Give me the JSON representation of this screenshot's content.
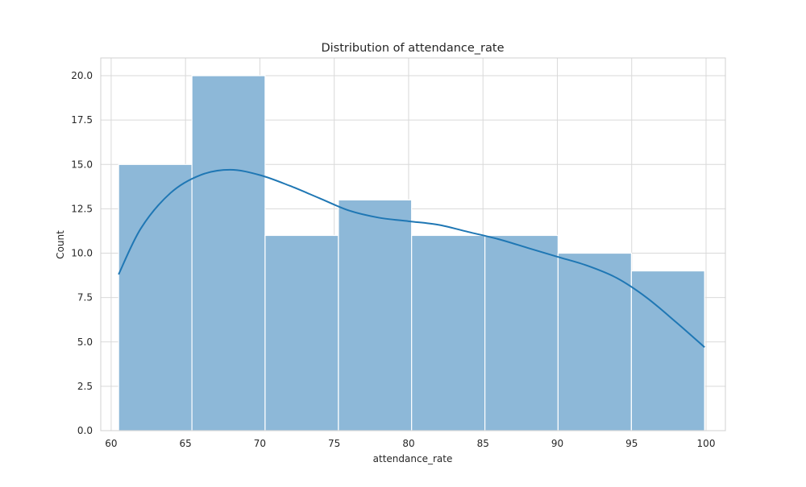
{
  "chart_data": {
    "type": "bar",
    "subtype": "histogram-with-kde",
    "title": "Distribution of attendance_rate",
    "xlabel": "attendance_rate",
    "ylabel": "Count",
    "xlim": [
      59.3,
      101.3
    ],
    "ylim": [
      0,
      21.0
    ],
    "xticks": [
      60,
      65,
      70,
      75,
      80,
      85,
      90,
      95,
      100
    ],
    "xtick_labels": [
      "60",
      "65",
      "70",
      "75",
      "80",
      "85",
      "90",
      "95",
      "100"
    ],
    "yticks": [
      0,
      2.5,
      5,
      7.5,
      10,
      12.5,
      15,
      17.5,
      20
    ],
    "ytick_labels": [
      "0.0",
      "2.5",
      "5.0",
      "7.5",
      "10.0",
      "12.5",
      "15.0",
      "17.5",
      "20.0"
    ],
    "bin_edges": [
      60.5,
      65.43,
      70.35,
      75.28,
      80.2,
      85.13,
      90.05,
      94.98,
      99.9
    ],
    "counts": [
      15,
      20,
      11,
      13,
      11,
      11,
      10,
      9
    ],
    "kde": {
      "x": [
        60.5,
        62,
        64,
        66,
        68,
        70,
        72,
        74,
        76,
        78,
        80,
        82,
        84,
        86,
        88,
        90,
        92,
        94,
        96,
        98,
        99.9
      ],
      "y": [
        8.8,
        11.4,
        13.4,
        14.4,
        14.7,
        14.4,
        13.8,
        13.1,
        12.4,
        12.0,
        11.8,
        11.6,
        11.2,
        10.8,
        10.3,
        9.8,
        9.3,
        8.6,
        7.5,
        6.1,
        4.7
      ]
    },
    "colors": {
      "bar_fill": "#8db8d8",
      "bar_edge": "#ffffff",
      "kde_line": "#1f77b4",
      "grid": "#d9d9d9"
    },
    "grid": true,
    "style": "whitegrid"
  }
}
